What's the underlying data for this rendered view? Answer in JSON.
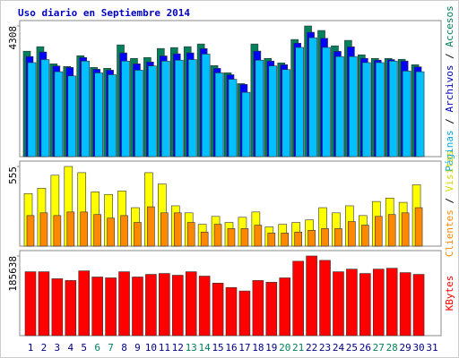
{
  "chart_data": [
    {
      "type": "bar",
      "title": "Uso diario en Septiembre 2014",
      "title_color": "#0000c0",
      "ylim": [
        0,
        4308
      ],
      "yticks": [
        4308
      ],
      "legend_separator": " / ",
      "series": [
        {
          "name": "Accesos",
          "color": "#00805c",
          "label_color": "#00805c",
          "values": [
            3476,
            3625,
            3060,
            2971,
            3328,
            2941,
            2912,
            3684,
            3238,
            3268,
            3565,
            3595,
            3625,
            3714,
            3001,
            2763,
            2407,
            3714,
            3238,
            3090,
            3862,
            4308,
            4159,
            3654,
            3833,
            3357,
            3238,
            3238,
            3209,
            3030,
            null
          ]
        },
        {
          "name": "Archivos",
          "color": "#0000ff",
          "label_color": "#0000c0",
          "values": [
            3300,
            3450,
            2990,
            2940,
            3270,
            2880,
            2850,
            3420,
            3060,
            3120,
            3320,
            3390,
            3420,
            3560,
            2910,
            2700,
            2380,
            3480,
            3150,
            3030,
            3740,
            4100,
            3900,
            3470,
            3620,
            3240,
            3180,
            3200,
            3150,
            2960,
            null
          ]
        },
        {
          "name": "Páginas",
          "color": "#00c0ff",
          "label_color": "#00a8e0",
          "values": [
            3100,
            3200,
            2800,
            2660,
            3150,
            2760,
            2700,
            3150,
            2850,
            2990,
            3150,
            3180,
            3200,
            3380,
            2760,
            2550,
            2120,
            3180,
            2990,
            2870,
            3600,
            3920,
            3600,
            3300,
            3300,
            3100,
            3100,
            3150,
            2820,
            2800,
            null
          ]
        }
      ]
    },
    {
      "type": "bar",
      "ylim": [
        0,
        555
      ],
      "yticks": [
        555
      ],
      "legend_separator": " / ",
      "series": [
        {
          "name": "Visitas",
          "color": "#ffff00",
          "label_color": "#d8d800",
          "values": [
            366,
            403,
            494,
            555,
            512,
            378,
            360,
            384,
            268,
            512,
            433,
            281,
            232,
            152,
            207,
            165,
            201,
            238,
            134,
            152,
            165,
            183,
            268,
            232,
            281,
            213,
            311,
            335,
            305,
            427,
            null
          ]
        },
        {
          "name": "Clientes",
          "color": "#ff8800",
          "label_color": "#ff8800",
          "values": [
            213,
            232,
            213,
            238,
            238,
            220,
            195,
            213,
            165,
            274,
            232,
            232,
            165,
            98,
            152,
            122,
            122,
            146,
            91,
            91,
            98,
            110,
            122,
            122,
            171,
            146,
            207,
            220,
            232,
            268,
            null
          ]
        }
      ]
    },
    {
      "type": "bar",
      "ylim": [
        0,
        185638
      ],
      "yticks": [
        185638
      ],
      "categories": [
        "1",
        "2",
        "3",
        "4",
        "5",
        "6",
        "7",
        "8",
        "9",
        "10",
        "11",
        "12",
        "13",
        "14",
        "15",
        "16",
        "17",
        "18",
        "19",
        "20",
        "21",
        "22",
        "23",
        "24",
        "25",
        "26",
        "27",
        "28",
        "29",
        "30",
        "31"
      ],
      "category_colors": [
        "#000080",
        "#000080",
        "#000080",
        "#000080",
        "#000080",
        "#00805c",
        "#00805c",
        "#000080",
        "#000080",
        "#000080",
        "#000080",
        "#000080",
        "#00805c",
        "#00805c",
        "#000080",
        "#000080",
        "#000080",
        "#000080",
        "#000080",
        "#00805c",
        "#00805c",
        "#000080",
        "#000080",
        "#000080",
        "#000080",
        "#000080",
        "#00805c",
        "#00805c",
        "#000080",
        "#000080",
        "#000080"
      ],
      "series": [
        {
          "name": "KBytes",
          "color": "#ff0000",
          "label_color": "#ff0000",
          "values": [
            148920,
            148920,
            132600,
            128517,
            150960,
            136680,
            134640,
            148920,
            136680,
            142800,
            144840,
            140760,
            148920,
            138720,
            122400,
            112200,
            104040,
            128517,
            124440,
            134640,
            173400,
            185638,
            175440,
            148920,
            155040,
            144840,
            155040,
            157080,
            146880,
            142800,
            null
          ]
        }
      ]
    }
  ]
}
